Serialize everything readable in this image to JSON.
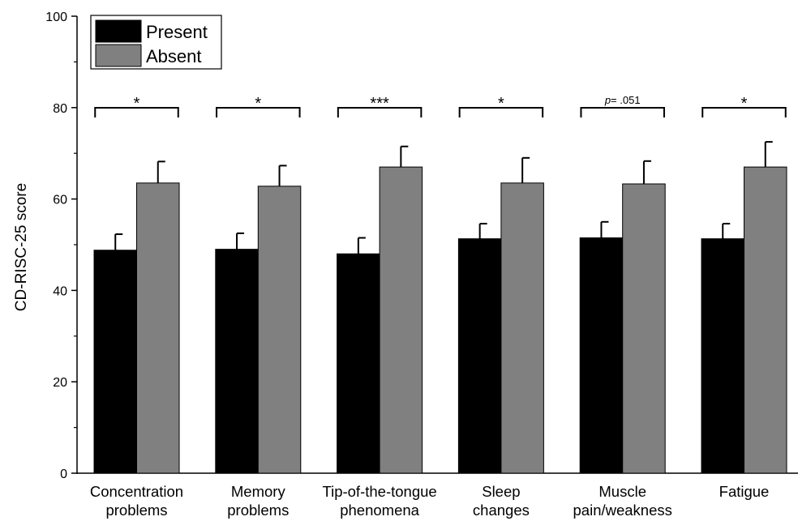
{
  "chart_data": {
    "type": "bar",
    "ylabel": "CD-RISC-25 score",
    "xlabel": "",
    "ylim": [
      0,
      100
    ],
    "yticks": [
      0,
      20,
      40,
      60,
      80,
      100
    ],
    "legend_position": "top-left",
    "categories": [
      [
        "Concentration",
        "problems"
      ],
      [
        "Memory",
        "problems"
      ],
      [
        "Tip-of-the-tongue",
        "phenomena"
      ],
      [
        "Sleep",
        "changes"
      ],
      [
        "Muscle",
        "pain/weakness"
      ],
      [
        "Fatigue"
      ]
    ],
    "series": [
      {
        "name": "Present",
        "color": "#000000",
        "values": [
          48.8,
          49.0,
          48.0,
          51.3,
          51.5,
          51.3
        ],
        "errors": [
          3.5,
          3.5,
          3.5,
          3.3,
          3.5,
          3.3
        ]
      },
      {
        "name": "Absent",
        "color": "#808080",
        "values": [
          63.5,
          62.8,
          67.0,
          63.5,
          63.3,
          67.0
        ],
        "errors": [
          4.7,
          4.5,
          4.5,
          5.5,
          5.0,
          5.5
        ]
      }
    ],
    "annotations": [
      {
        "text": "*"
      },
      {
        "text": "*"
      },
      {
        "text": "***"
      },
      {
        "text": "*"
      },
      {
        "text": "p= .051",
        "italic_prefix": "p"
      },
      {
        "text": "*"
      }
    ]
  }
}
